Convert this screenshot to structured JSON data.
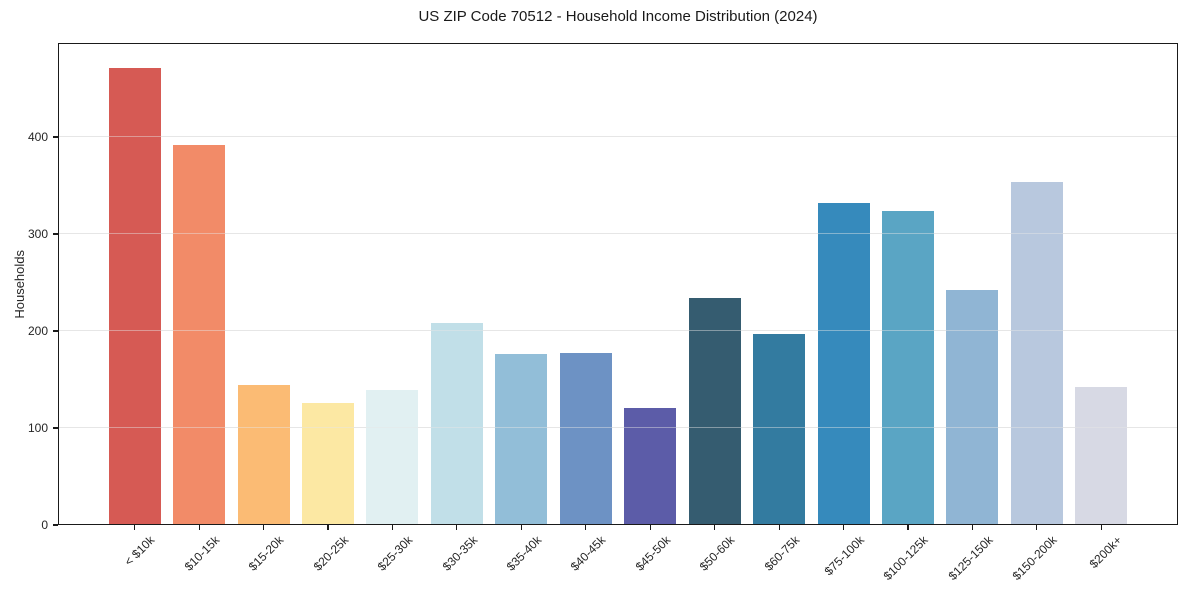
{
  "chart_data": {
    "type": "bar",
    "title": "US ZIP Code 70512 - Household Income Distribution (2024)",
    "xlabel": "",
    "ylabel": "Households",
    "categories": [
      "< $10k",
      "$10-15k",
      "$15-20k",
      "$20-25k",
      "$25-30k",
      "$30-35k",
      "$35-40k",
      "$40-45k",
      "$45-50k",
      "$50-60k",
      "$60-75k",
      "$75-100k",
      "$100-125k",
      "$125-150k",
      "$150-200k",
      "$200k+"
    ],
    "values": [
      471,
      392,
      144,
      126,
      139,
      208,
      176,
      177,
      121,
      234,
      197,
      332,
      324,
      242,
      354,
      142
    ],
    "bar_colors": [
      "#d65a54",
      "#f28b68",
      "#fbbb74",
      "#fce8a3",
      "#e1f0f2",
      "#c1dfe8",
      "#92bed8",
      "#6d92c4",
      "#5c5ca8",
      "#355c70",
      "#337ba0",
      "#368abc",
      "#5aa5c4",
      "#90b5d4",
      "#b8c8de",
      "#d7d9e4"
    ],
    "yticks": [
      0,
      100,
      200,
      300,
      400
    ],
    "ylim": [
      0,
      497
    ],
    "grid": "horizontal",
    "legend": "none",
    "colors": {
      "background": "#ffffff",
      "grid": "#e6e6e6",
      "axis": "#1a1a1a",
      "text": "#262626"
    }
  }
}
